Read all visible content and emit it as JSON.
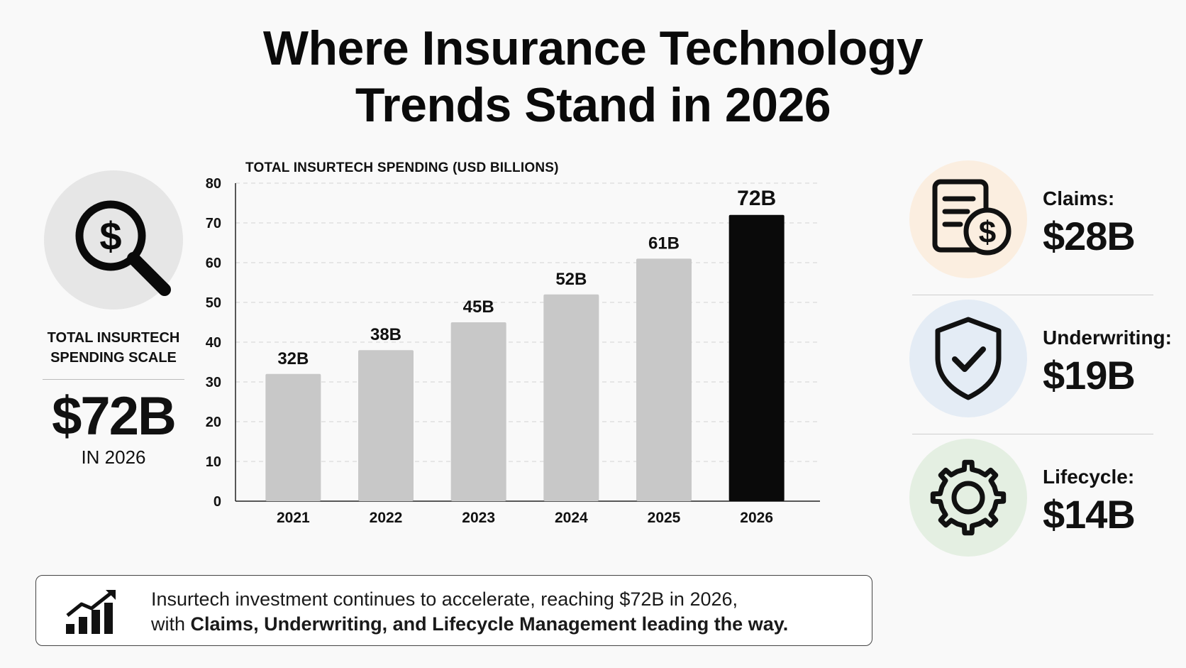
{
  "title_line1": "Where Insurance Technology",
  "title_line2": "Trends Stand in 2026",
  "left_stat": {
    "icon": "magnifier-dollar-icon",
    "label_line1": "TOTAL INSURTECH",
    "label_line2": "SPENDING SCALE",
    "value": "$72B",
    "sub": "IN 2026"
  },
  "chart_data": {
    "type": "bar",
    "title": "TOTAL INSURTECH SPENDING (USD BILLIONS)",
    "categories": [
      "2021",
      "2022",
      "2023",
      "2024",
      "2025",
      "2026"
    ],
    "values": [
      32,
      38,
      45,
      52,
      61,
      72
    ],
    "data_labels": [
      "32B",
      "38B",
      "45B",
      "52B",
      "61B",
      "72B"
    ],
    "ylim": [
      0,
      80
    ],
    "yticks": [
      0,
      10,
      20,
      30,
      40,
      50,
      60,
      70,
      80
    ],
    "grid": true,
    "colors": {
      "default_bar": "#c8c8c8",
      "highlight_bar": "#0a0a0a",
      "grid": "#d4d4d4"
    },
    "highlight_index": 5
  },
  "categories": [
    {
      "icon": "document-dollar-icon",
      "name": "Claims:",
      "value": "$28B",
      "circle_color": "#fbeee0"
    },
    {
      "icon": "shield-check-icon",
      "name": "Underwriting:",
      "value": "$19B",
      "circle_color": "#e4ecf5"
    },
    {
      "icon": "gear-icon",
      "name": "Lifecycle:",
      "value": "$14B",
      "circle_color": "#e4efe2"
    }
  ],
  "note": {
    "icon": "growth-chart-icon",
    "line1": "Insurtech investment continues to accelerate, reaching $72B in 2026,",
    "line2_prefix": "with ",
    "line2_bold": "Claims, Underwriting, and Lifecycle Management leading the way."
  }
}
